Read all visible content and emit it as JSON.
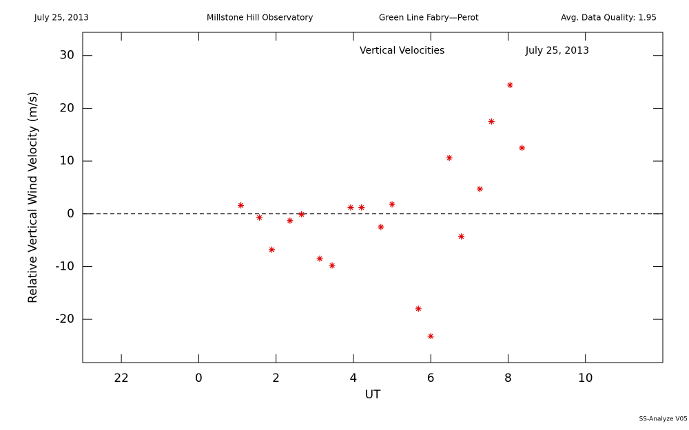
{
  "chart_data": {
    "type": "scatter",
    "header": [
      "July 25, 2013",
      "Millstone Hill Observatory",
      "Green Line Fabry—Perot",
      "Avg. Data Quality: 1.95"
    ],
    "title": "Vertical Velocities",
    "subtitle": "July 25, 2013",
    "xlabel": "UT",
    "ylabel": "Relative Vertical Wind Velocity (m/s)",
    "footer": "SS-Analyze V05",
    "x": [
      1.09,
      1.57,
      1.89,
      2.36,
      2.66,
      3.13,
      3.45,
      3.93,
      4.21,
      4.71,
      5.0,
      5.68,
      6.0,
      6.48,
      6.79,
      7.27,
      7.57,
      8.05,
      8.36
    ],
    "values": [
      1.6,
      -0.7,
      -6.8,
      -1.3,
      -0.1,
      -8.5,
      -9.8,
      1.2,
      1.2,
      -2.5,
      1.8,
      -18.0,
      -23.2,
      10.6,
      -4.3,
      4.7,
      17.5,
      24.4,
      12.5
    ],
    "color": "#e00000",
    "xlim": [
      -3,
      12
    ],
    "xticks": [
      {
        "value": -2,
        "label": "22"
      },
      0,
      2,
      4,
      6,
      8,
      10
    ],
    "ylim": [
      -28.2,
      34.4
    ],
    "yticks": [
      -20,
      -10,
      0,
      10,
      20,
      30
    ],
    "zero_line": true
  }
}
